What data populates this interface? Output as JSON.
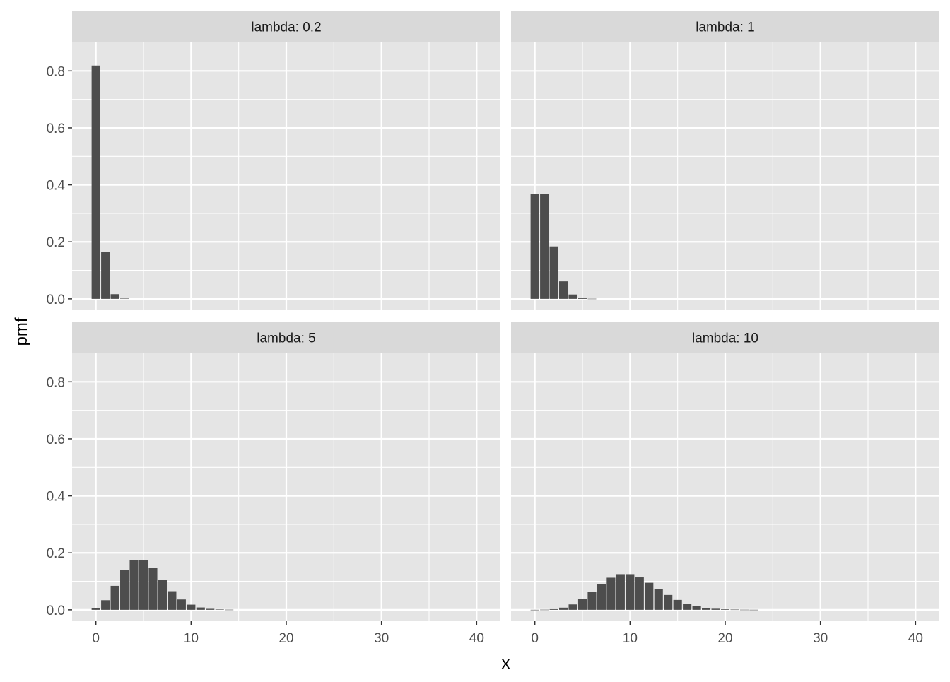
{
  "chart_data": {
    "type": "bar",
    "facet_layout": "2x2 grid",
    "xlabel": "x",
    "ylabel": "pmf",
    "xlim": [
      -2.5,
      42.5
    ],
    "ylim": [
      -0.04,
      0.9
    ],
    "x_ticks": [
      0,
      10,
      20,
      30,
      40
    ],
    "y_ticks": [
      0.0,
      0.2,
      0.4,
      0.6,
      0.8
    ],
    "y_tick_labels": [
      "0.0",
      "0.2",
      "0.4",
      "0.6",
      "0.8"
    ],
    "grid": true,
    "legend": "none",
    "colors": {
      "bar": "#4d4d4d",
      "panel_background": "#e5e5e5",
      "strip_background": "#d9d9d9",
      "gridline": "#ffffff",
      "text": "#4d4d4d",
      "title_text": "#000000"
    },
    "panels": [
      {
        "strip": "lambda: 0.2",
        "x": [
          0,
          1,
          2,
          3
        ],
        "values": [
          0.8187,
          0.1637,
          0.0164,
          0.0011
        ]
      },
      {
        "strip": "lambda: 1",
        "x": [
          0,
          1,
          2,
          3,
          4,
          5,
          6
        ],
        "values": [
          0.3679,
          0.3679,
          0.1839,
          0.0613,
          0.0153,
          0.0031,
          0.0005
        ]
      },
      {
        "strip": "lambda: 5",
        "x": [
          0,
          1,
          2,
          3,
          4,
          5,
          6,
          7,
          8,
          9,
          10,
          11,
          12,
          13,
          14
        ],
        "values": [
          0.0067,
          0.0337,
          0.0842,
          0.1404,
          0.1755,
          0.1755,
          0.1462,
          0.1044,
          0.0653,
          0.0363,
          0.0181,
          0.0082,
          0.0034,
          0.0013,
          0.0005
        ]
      },
      {
        "strip": "lambda: 10",
        "x": [
          0,
          1,
          2,
          3,
          4,
          5,
          6,
          7,
          8,
          9,
          10,
          11,
          12,
          13,
          14,
          15,
          16,
          17,
          18,
          19,
          20,
          21,
          22,
          23
        ],
        "values": [
          5e-05,
          0.0005,
          0.0023,
          0.0076,
          0.0189,
          0.0378,
          0.0631,
          0.0901,
          0.1126,
          0.1251,
          0.1251,
          0.1137,
          0.0948,
          0.0729,
          0.0521,
          0.0347,
          0.0217,
          0.0128,
          0.0071,
          0.0037,
          0.0019,
          0.0009,
          0.0004,
          0.0002
        ]
      }
    ]
  }
}
